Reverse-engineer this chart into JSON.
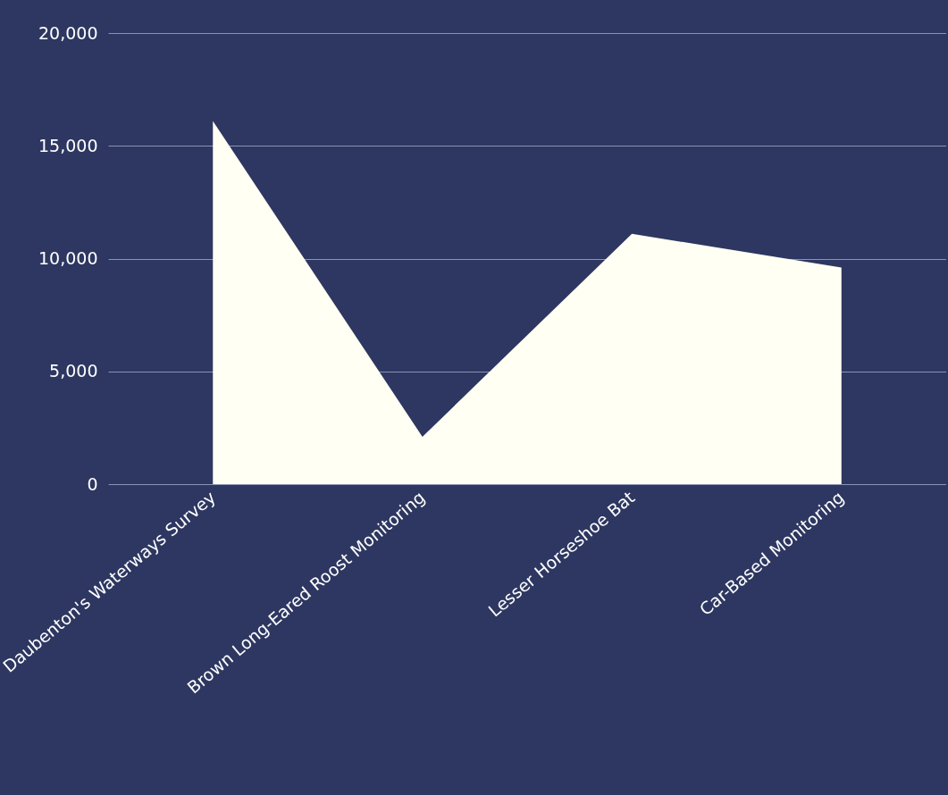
{
  "chart_data": {
    "type": "area",
    "categories": [
      "Daubenton's Waterways Survey",
      "Brown Long-Eared Roost Monitoring",
      "Lesser Horseshoe Bat",
      "Car-Based Monitoring"
    ],
    "series": [
      {
        "color": "#fffff3",
        "values": [
          16100,
          2100,
          11100,
          9600
        ]
      }
    ],
    "ylim": [
      0,
      20000
    ],
    "yticks": [
      0,
      {
        "value": 5000,
        "label": "5,000"
      },
      {
        "value": 10000,
        "label": "10,000"
      },
      {
        "value": 15000,
        "label": "15,000"
      },
      {
        "value": 20000,
        "label": "20,000"
      }
    ],
    "grid": "y"
  }
}
